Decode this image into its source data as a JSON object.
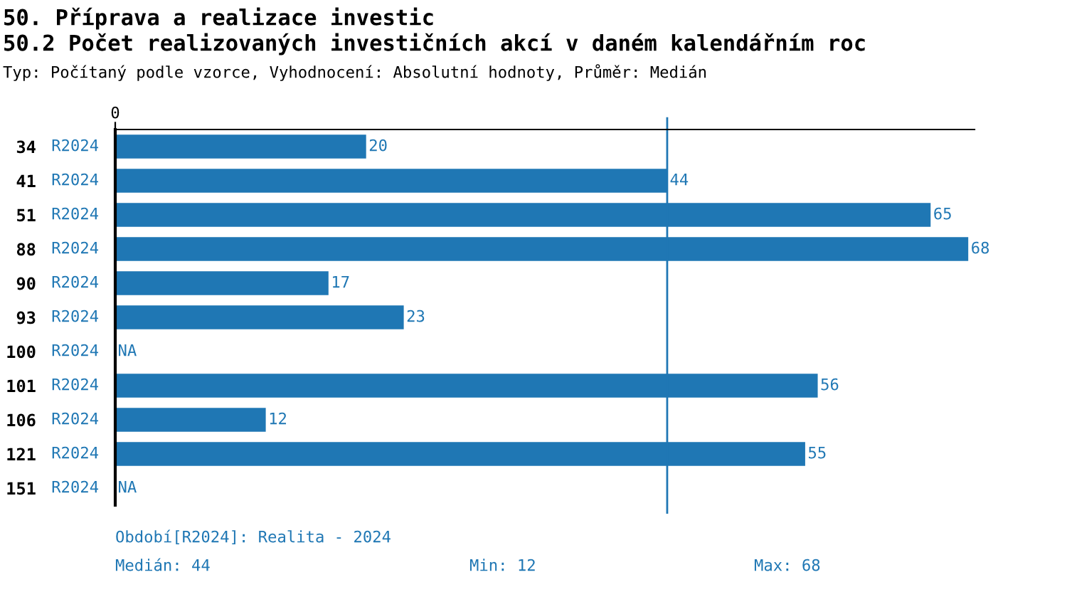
{
  "chart_data": {
    "type": "bar",
    "orientation": "horizontal",
    "title": "50. Příprava a realizace investic",
    "subtitle": "50.2 Počet realizovaných investičních akcí v daném kalendářním roc",
    "categories": [
      "34",
      "41",
      "51",
      "88",
      "90",
      "93",
      "100",
      "101",
      "106",
      "121",
      "151"
    ],
    "series": [
      {
        "name": "R2024",
        "color": "#1f77b4",
        "values": [
          20,
          44,
          65,
          68,
          17,
          23,
          null,
          56,
          12,
          55,
          null
        ],
        "value_labels": [
          "20",
          "44",
          "65",
          "68",
          "17",
          "23",
          "NA",
          "56",
          "12",
          "55",
          "NA"
        ]
      }
    ],
    "xlim": [
      0,
      68.5
    ],
    "ref_lines": [
      {
        "axis": "x",
        "value": 44,
        "color": "#1f77b4"
      }
    ],
    "annotations": [
      "0",
      "Typ: Počítaný podle vzorce, Vyhodnocení: Absolutní hodnoty, Průměr: Medián",
      "Období[R2024]: Realita - 2024",
      "Medián: 44",
      "Min: 12",
      "Max: 68"
    ],
    "grid": false,
    "legend": false
  }
}
